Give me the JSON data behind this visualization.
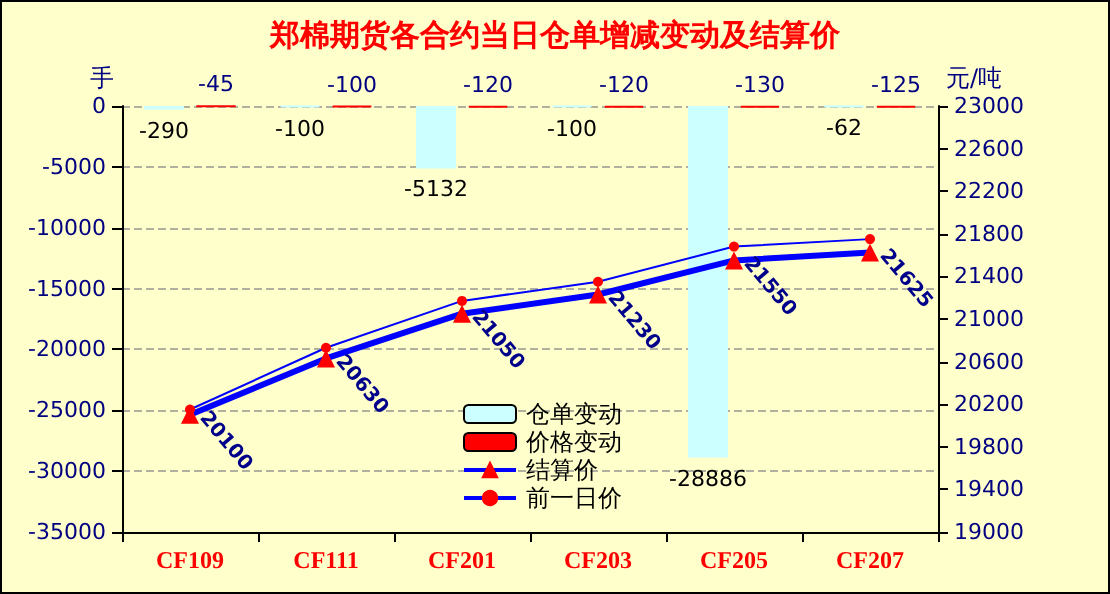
{
  "chart_data": {
    "type": "bar",
    "title": "郑棉期货各合约当日仓单增减变动及结算价",
    "ylabel": "手",
    "y2label": "元/吨",
    "categories": [
      "CF109",
      "CF111",
      "CF201",
      "CF203",
      "CF205",
      "CF207"
    ],
    "series": [
      {
        "name": "仓单变动",
        "color": "#ccffff",
        "values": [
          -290,
          -100,
          -5132,
          -100,
          -28886,
          -62
        ],
        "value_labels": [
          "-290",
          "-100",
          "-5132",
          "-100",
          "-28886",
          "-62"
        ]
      },
      {
        "name": "价格变动",
        "color": "#ff0000",
        "values": [
          -45,
          -100,
          -120,
          -120,
          -130,
          -125
        ],
        "value_labels": [
          "-45",
          "-100",
          "-120",
          "-120",
          "-130",
          "-125"
        ]
      },
      {
        "name": "结算价",
        "type": "line",
        "axis": "y2",
        "color": "#0000ff",
        "colors": [
          "#ff0000",
          "#ff0000",
          "#ff0000",
          "#ff0000",
          "#ff0000",
          "#ff0000"
        ],
        "marker": "triangle",
        "values": [
          20100,
          20630,
          21050,
          21230,
          21550,
          21625
        ],
        "value_labels": [
          "20100",
          "20630",
          "21050",
          "21230",
          "21550",
          "21625"
        ]
      },
      {
        "name": "前一日价",
        "type": "line",
        "axis": "y2",
        "color": "#0000ff",
        "colors": [
          "#ff0000",
          "#ff0000",
          "#ff0000",
          "#ff0000",
          "#ff0000",
          "#ff0000"
        ],
        "marker": "circle",
        "values": [
          20150,
          20730,
          21170,
          21350,
          21680,
          21750
        ]
      }
    ],
    "ylim": [
      -35000,
      0
    ],
    "yticks": [
      -35000,
      -30000,
      -25000,
      -20000,
      -15000,
      -10000,
      -5000,
      0
    ],
    "y2lim": [
      19000,
      23000
    ],
    "y2ticks": [
      19000,
      19400,
      19800,
      20200,
      20600,
      21000,
      21400,
      21800,
      22200,
      22600,
      23000
    ],
    "grid": "y",
    "legend": "bottom"
  }
}
